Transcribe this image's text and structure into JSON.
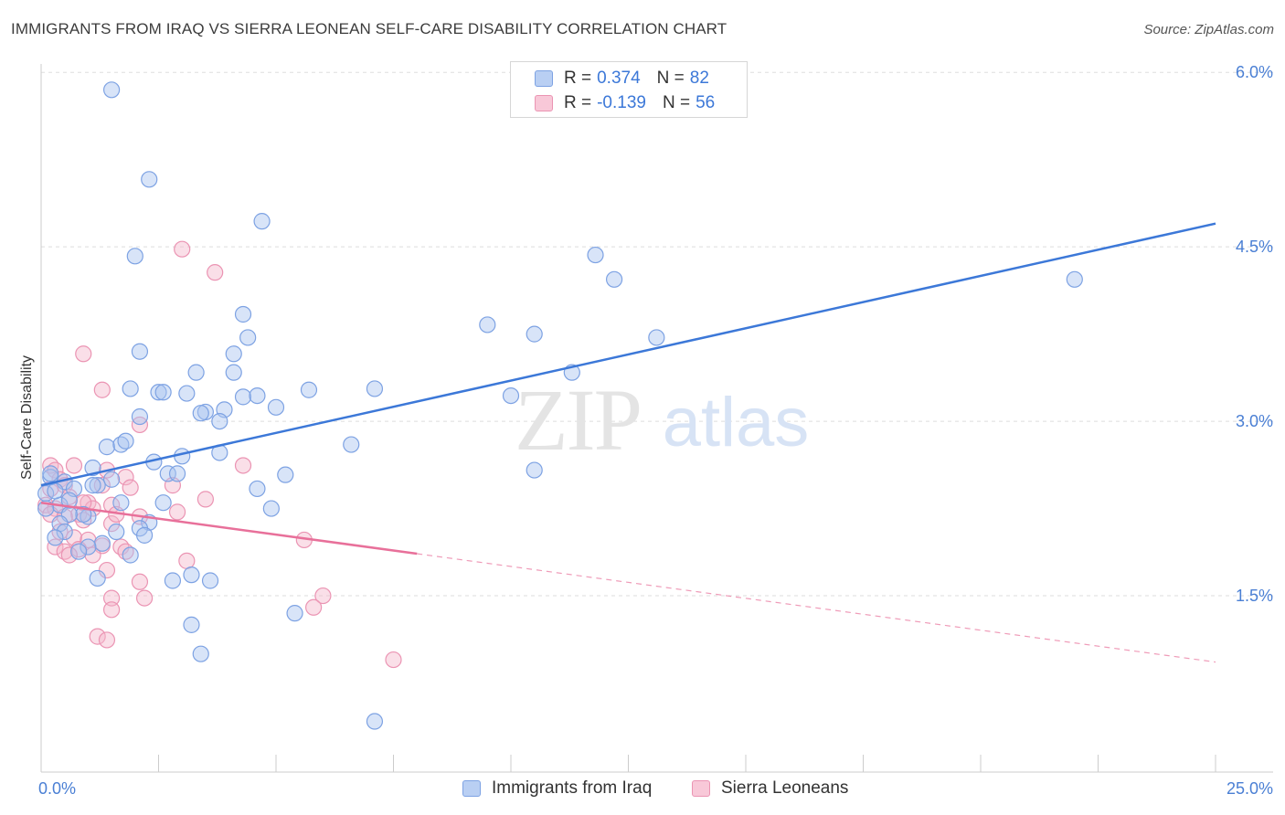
{
  "title": "IMMIGRANTS FROM IRAQ VS SIERRA LEONEAN SELF-CARE DISABILITY CORRELATION CHART",
  "source": "Source: ZipAtlas.com",
  "watermark": {
    "zip": "ZIP",
    "atlas": "atlas"
  },
  "colors": {
    "blue": "#3c78d8",
    "blue_fill": "#a9c4f0",
    "pink": "#e8709a",
    "pink_fill": "#f4b8cc",
    "grid": "#dddddd",
    "tick_text": "#4a7fd4"
  },
  "legend": {
    "blue": {
      "r_label": "R =",
      "r_value": "0.374",
      "n_label": "N =",
      "n_value": "82"
    },
    "pink": {
      "r_label": "R =",
      "r_value": "-0.139",
      "n_label": "N =",
      "n_value": "56"
    }
  },
  "chart_data": {
    "type": "scatter",
    "title": "IMMIGRANTS FROM IRAQ VS SIERRA LEONEAN SELF-CARE DISABILITY CORRELATION CHART",
    "xlabel": "",
    "ylabel": "Self-Care Disability",
    "xlim": [
      0,
      25
    ],
    "ylim": [
      0,
      6.3
    ],
    "x_tick_labels": [
      "0.0%",
      "25.0%"
    ],
    "y_ticks": [
      1.5,
      3.0,
      4.5,
      6.0
    ],
    "y_tick_labels": [
      "1.5%",
      "3.0%",
      "4.5%",
      "6.0%"
    ],
    "grid": true,
    "legend_position": "top-center",
    "series": [
      {
        "name": "Immigrants from Iraq",
        "color": "#3c78d8",
        "trend": {
          "x": [
            0.0,
            25.0
          ],
          "y": [
            2.45,
            4.7
          ],
          "dashed_from": null
        },
        "points": [
          [
            1.5,
            5.85
          ],
          [
            2.3,
            5.08
          ],
          [
            4.7,
            4.72
          ],
          [
            2.0,
            4.42
          ],
          [
            11.8,
            4.43
          ],
          [
            12.2,
            4.22
          ],
          [
            22.0,
            4.22
          ],
          [
            4.3,
            3.92
          ],
          [
            9.5,
            3.83
          ],
          [
            10.5,
            3.75
          ],
          [
            13.1,
            3.72
          ],
          [
            4.4,
            3.72
          ],
          [
            2.1,
            3.6
          ],
          [
            4.1,
            3.58
          ],
          [
            3.3,
            3.42
          ],
          [
            4.1,
            3.42
          ],
          [
            11.3,
            3.42
          ],
          [
            1.9,
            3.28
          ],
          [
            2.5,
            3.25
          ],
          [
            2.6,
            3.25
          ],
          [
            3.1,
            3.24
          ],
          [
            5.7,
            3.27
          ],
          [
            7.1,
            3.28
          ],
          [
            4.3,
            3.21
          ],
          [
            4.6,
            3.22
          ],
          [
            10.0,
            3.22
          ],
          [
            3.5,
            3.08
          ],
          [
            3.4,
            3.07
          ],
          [
            3.9,
            3.1
          ],
          [
            5.0,
            3.12
          ],
          [
            2.1,
            3.04
          ],
          [
            3.8,
            3.0
          ],
          [
            1.4,
            2.78
          ],
          [
            1.7,
            2.8
          ],
          [
            1.8,
            2.83
          ],
          [
            6.6,
            2.8
          ],
          [
            3.0,
            2.7
          ],
          [
            3.8,
            2.73
          ],
          [
            2.4,
            2.65
          ],
          [
            1.1,
            2.6
          ],
          [
            10.5,
            2.58
          ],
          [
            2.7,
            2.55
          ],
          [
            2.9,
            2.55
          ],
          [
            5.2,
            2.54
          ],
          [
            0.2,
            2.52
          ],
          [
            0.5,
            2.48
          ],
          [
            0.7,
            2.42
          ],
          [
            1.5,
            2.5
          ],
          [
            4.6,
            2.42
          ],
          [
            0.1,
            2.38
          ],
          [
            1.2,
            2.45
          ],
          [
            2.6,
            2.3
          ],
          [
            1.7,
            2.3
          ],
          [
            4.9,
            2.25
          ],
          [
            1.0,
            2.18
          ],
          [
            0.9,
            2.2
          ],
          [
            0.4,
            2.28
          ],
          [
            0.6,
            2.2
          ],
          [
            2.3,
            2.13
          ],
          [
            0.4,
            2.12
          ],
          [
            0.5,
            2.05
          ],
          [
            1.6,
            2.05
          ],
          [
            2.1,
            2.08
          ],
          [
            2.2,
            2.02
          ],
          [
            0.3,
            2.0
          ],
          [
            1.3,
            1.95
          ],
          [
            1.0,
            1.92
          ],
          [
            1.9,
            1.85
          ],
          [
            0.8,
            1.88
          ],
          [
            1.2,
            1.65
          ],
          [
            2.8,
            1.63
          ],
          [
            3.2,
            1.68
          ],
          [
            3.6,
            1.63
          ],
          [
            5.4,
            1.35
          ],
          [
            3.2,
            1.25
          ],
          [
            3.4,
            1.0
          ],
          [
            7.1,
            0.42
          ],
          [
            0.1,
            2.25
          ],
          [
            0.3,
            2.4
          ],
          [
            0.2,
            2.55
          ],
          [
            1.1,
            2.45
          ],
          [
            0.6,
            2.32
          ]
        ]
      },
      {
        "name": "Sierra Leoneans",
        "color": "#e8709a",
        "trend": {
          "x": [
            0.0,
            25.0
          ],
          "y": [
            2.3,
            0.93
          ],
          "dashed_from": 8.0
        },
        "points": [
          [
            3.0,
            4.48
          ],
          [
            3.7,
            4.28
          ],
          [
            0.9,
            3.58
          ],
          [
            1.3,
            3.27
          ],
          [
            2.1,
            2.97
          ],
          [
            0.2,
            2.62
          ],
          [
            0.3,
            2.58
          ],
          [
            0.7,
            2.62
          ],
          [
            4.3,
            2.62
          ],
          [
            1.4,
            2.58
          ],
          [
            1.8,
            2.52
          ],
          [
            0.4,
            2.5
          ],
          [
            0.5,
            2.45
          ],
          [
            1.3,
            2.45
          ],
          [
            1.9,
            2.43
          ],
          [
            2.8,
            2.45
          ],
          [
            3.5,
            2.33
          ],
          [
            0.6,
            2.35
          ],
          [
            1.0,
            2.3
          ],
          [
            0.1,
            2.28
          ],
          [
            0.3,
            2.25
          ],
          [
            0.8,
            2.2
          ],
          [
            1.1,
            2.25
          ],
          [
            1.5,
            2.28
          ],
          [
            2.9,
            2.22
          ],
          [
            0.2,
            2.2
          ],
          [
            0.5,
            2.18
          ],
          [
            0.9,
            2.15
          ],
          [
            1.5,
            2.12
          ],
          [
            2.1,
            2.18
          ],
          [
            0.4,
            2.05
          ],
          [
            0.7,
            2.0
          ],
          [
            1.0,
            1.98
          ],
          [
            5.6,
            1.98
          ],
          [
            0.3,
            1.92
          ],
          [
            0.8,
            1.9
          ],
          [
            1.3,
            1.93
          ],
          [
            1.7,
            1.92
          ],
          [
            0.5,
            1.88
          ],
          [
            1.1,
            1.85
          ],
          [
            0.6,
            1.85
          ],
          [
            1.8,
            1.88
          ],
          [
            3.1,
            1.8
          ],
          [
            1.4,
            1.72
          ],
          [
            2.1,
            1.62
          ],
          [
            1.5,
            1.48
          ],
          [
            2.2,
            1.48
          ],
          [
            6.0,
            1.5
          ],
          [
            5.8,
            1.4
          ],
          [
            1.5,
            1.38
          ],
          [
            1.2,
            1.15
          ],
          [
            1.4,
            1.12
          ],
          [
            7.5,
            0.95
          ],
          [
            0.2,
            2.42
          ],
          [
            0.9,
            2.3
          ],
          [
            1.6,
            2.2
          ]
        ]
      }
    ]
  },
  "bottom_legend": {
    "blue_label": "Immigrants from Iraq",
    "pink_label": "Sierra Leoneans"
  }
}
